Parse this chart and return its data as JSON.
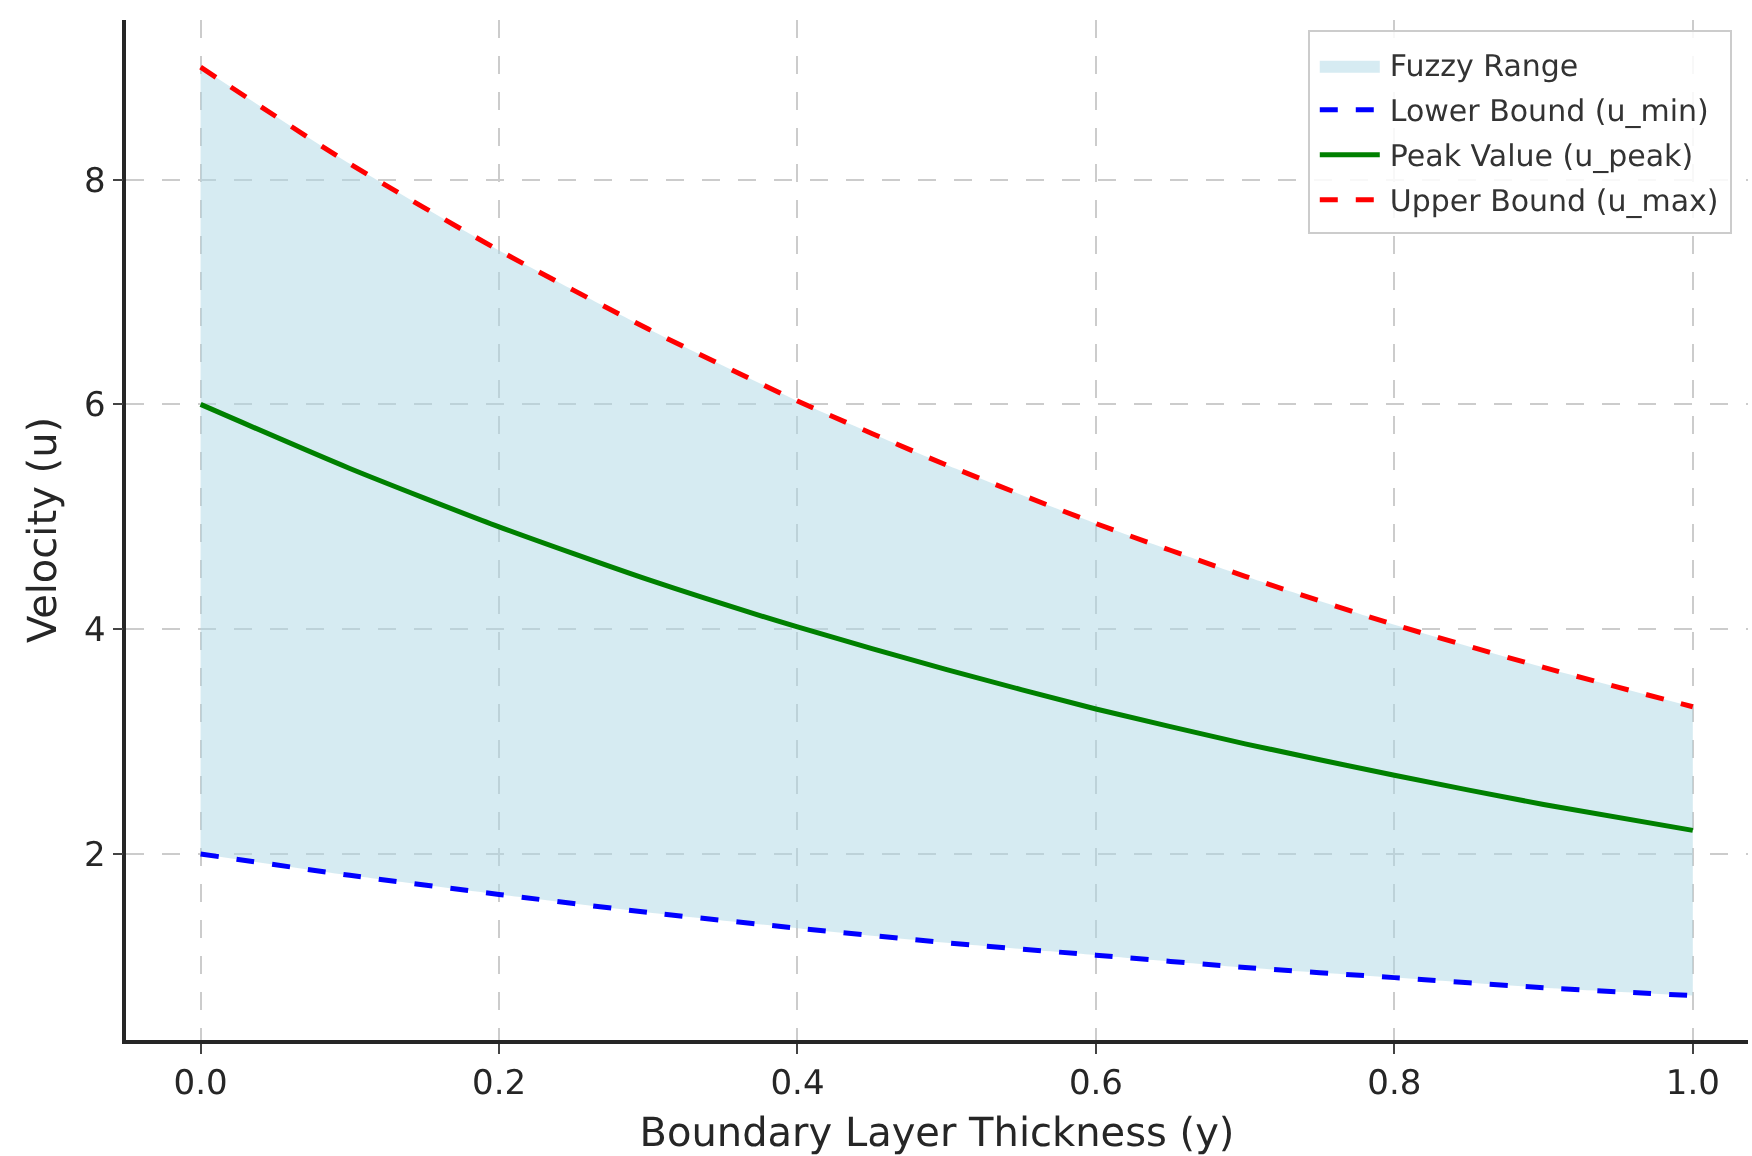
{
  "chart_data": {
    "type": "line",
    "xlabel": "Boundary Layer Thickness (y)",
    "ylabel": "Velocity (u)",
    "x": [
      0,
      0.1,
      0.2,
      0.3,
      0.4,
      0.5,
      0.6,
      0.7,
      0.8,
      0.9,
      1.0
    ],
    "series": [
      {
        "name": "Fuzzy Range",
        "type": "line",
        "color": "#add8e6",
        "values": [
          null,
          null,
          null,
          null,
          null,
          null,
          null,
          null,
          null,
          null,
          null
        ],
        "upper": [
          9,
          8.14,
          7.37,
          6.67,
          6.03,
          5.46,
          4.94,
          4.47,
          4.04,
          3.66,
          3.31
        ],
        "lower": [
          2,
          1.81,
          1.64,
          1.48,
          1.34,
          1.21,
          1.1,
          0.99,
          0.9,
          0.81,
          0.74
        ]
      },
      {
        "name": "Lower Bound (u_min)",
        "type": "line",
        "color": "#0000ff",
        "line_style": "dashed",
        "values": [
          2,
          1.81,
          1.64,
          1.48,
          1.34,
          1.21,
          1.1,
          0.99,
          0.9,
          0.81,
          0.74
        ]
      },
      {
        "name": "Peak Value (u_peak)",
        "type": "line",
        "color": "#008000",
        "line_style": "solid",
        "values": [
          6,
          5.43,
          4.91,
          4.44,
          4.02,
          3.64,
          3.29,
          2.98,
          2.7,
          2.44,
          2.21
        ]
      },
      {
        "name": "Upper Bound (u_max)",
        "type": "line",
        "color": "#ff0000",
        "line_style": "dashed",
        "values": [
          9,
          8.14,
          7.37,
          6.67,
          6.03,
          5.46,
          4.94,
          4.47,
          4.04,
          3.66,
          3.31
        ]
      }
    ],
    "xlim": [
      -0.05,
      1.037
    ],
    "xticks": [
      {
        "value": 0,
        "label": "0.0"
      },
      {
        "value": 0.2,
        "label": "0.2"
      },
      {
        "value": 0.4,
        "label": "0.4"
      },
      {
        "value": 0.6,
        "label": "0.6"
      },
      {
        "value": 0.8,
        "label": "0.8"
      },
      {
        "value": 1,
        "label": "1.0"
      }
    ],
    "ylim": [
      0.345,
      9.42
    ],
    "yticks": [
      2,
      4,
      6,
      8
    ],
    "grid": true,
    "legend": "top right"
  }
}
